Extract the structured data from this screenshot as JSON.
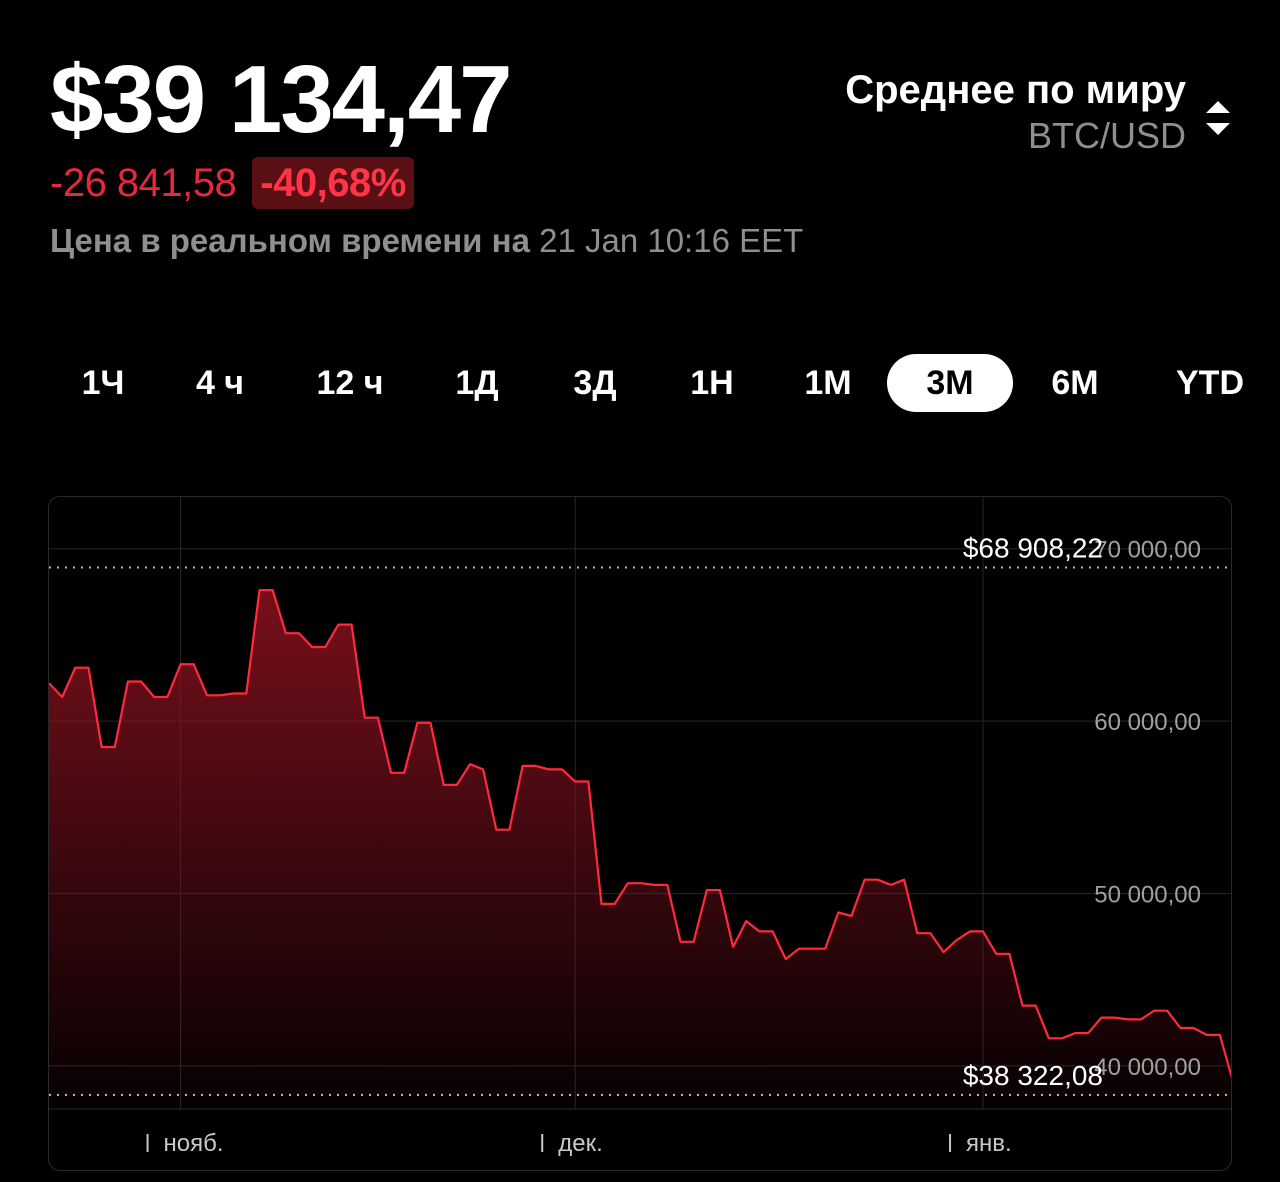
{
  "header": {
    "price": "$39 134,47",
    "change_abs": "-26 841,58",
    "change_pct": "-40,68%",
    "realtime_label": "Цена в реальном времени на",
    "realtime_time": "21 Jan 10:16 EET"
  },
  "exchange": {
    "name": "Среднее по миру",
    "pair": "BTC/USD"
  },
  "tabs": [
    {
      "label": "1Ч",
      "active": false
    },
    {
      "label": "4 ч",
      "active": false
    },
    {
      "label": "12 ч",
      "active": false
    },
    {
      "label": "1Д",
      "active": false
    },
    {
      "label": "3Д",
      "active": false
    },
    {
      "label": "1Н",
      "active": false
    },
    {
      "label": "1М",
      "active": false
    },
    {
      "label": "3М",
      "active": true
    },
    {
      "label": "6М",
      "active": false
    },
    {
      "label": "YTD",
      "active": false
    }
  ],
  "colors": {
    "accent_red": "#e5283b",
    "line": "#ff2a3c",
    "background": "#000000"
  },
  "chart_data": {
    "type": "area",
    "high_label": "$68 908,22",
    "low_label": "$38 322,08",
    "high": 68908.22,
    "low": 38322.08,
    "ylim": [
      37500,
      73000
    ],
    "yticks": [
      40000,
      50000,
      60000,
      70000
    ],
    "ytick_labels": [
      "40 000,00",
      "50 000,00",
      "60 000,00",
      "70 000,00"
    ],
    "xticks": [
      {
        "label": "нояб.",
        "day": 10
      },
      {
        "label": "дек.",
        "day": 40
      },
      {
        "label": "янв.",
        "day": 71
      }
    ],
    "xlim": [
      0,
      90
    ],
    "series": [
      {
        "x": [
          0,
          1,
          2,
          3,
          4,
          5,
          6,
          7,
          8,
          9,
          10,
          11,
          12,
          13,
          14,
          15,
          16,
          17,
          18,
          19,
          20,
          21,
          22,
          23,
          24,
          25,
          26,
          27,
          28,
          29,
          30,
          31,
          32,
          33,
          34,
          35,
          36,
          37,
          38,
          39,
          40,
          41,
          42,
          43,
          44,
          45,
          46,
          47,
          48,
          49,
          50,
          51,
          52,
          53,
          54,
          55,
          56,
          57,
          58,
          59,
          60,
          61,
          62,
          63,
          64,
          65,
          66,
          67,
          68,
          69,
          70,
          71,
          72,
          73,
          74,
          75,
          76,
          77,
          78,
          79,
          80,
          81,
          82,
          83,
          84,
          85,
          86,
          87,
          88,
          89,
          90
        ],
        "values": [
          62200,
          61400,
          63100,
          63100,
          58500,
          58500,
          62300,
          62300,
          61400,
          61400,
          63300,
          63300,
          61500,
          61500,
          61600,
          61600,
          67600,
          67600,
          65100,
          65100,
          64300,
          64300,
          65600,
          65600,
          60200,
          60200,
          57000,
          57000,
          59900,
          59900,
          56300,
          56300,
          57500,
          57200,
          53700,
          53700,
          57400,
          57400,
          57200,
          57200,
          56500,
          56500,
          49400,
          49400,
          50600,
          50600,
          50500,
          50500,
          47200,
          47200,
          50200,
          50200,
          46900,
          48400,
          47800,
          47800,
          46200,
          46800,
          46800,
          46800,
          48900,
          48700,
          50800,
          50800,
          50500,
          50800,
          47700,
          47700,
          46600,
          47300,
          47800,
          47800,
          46500,
          46500,
          43500,
          43500,
          41600,
          41600,
          41900,
          41900,
          42800,
          42800,
          42700,
          42700,
          43200,
          43200,
          42200,
          42200,
          41800,
          41800,
          39100
        ]
      }
    ]
  }
}
